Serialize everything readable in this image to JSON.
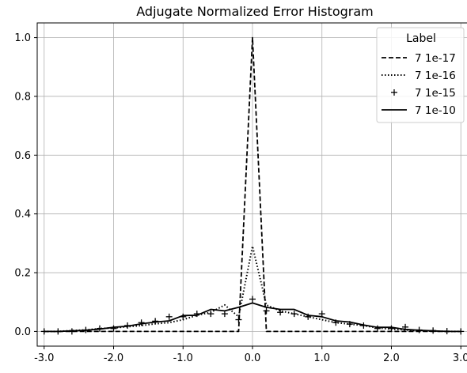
{
  "chart_data": {
    "type": "line",
    "title": "Adjugate Normalized Error Histogram",
    "xlabel": "",
    "ylabel": "",
    "xlim": [
      -3.1,
      3.1
    ],
    "ylim": [
      -0.05,
      1.05
    ],
    "xticks": [
      -3.0,
      -2.0,
      -1.0,
      0.0,
      1.0,
      2.0,
      3.0
    ],
    "xtick_labels": [
      "-3.0",
      "-2.0",
      "-1.0",
      "0.0",
      "1.0",
      "2.0",
      "3.0"
    ],
    "yticks": [
      0.0,
      0.2,
      0.4,
      0.6,
      0.8,
      1.0
    ],
    "ytick_labels": [
      "0.0",
      "0.2",
      "0.4",
      "0.6",
      "0.8",
      "1.0"
    ],
    "grid": true,
    "legend": {
      "title": "Label",
      "position": "top-right"
    },
    "x": [
      -3.0,
      -2.8,
      -2.6,
      -2.4,
      -2.2,
      -2.0,
      -1.8,
      -1.6,
      -1.4,
      -1.2,
      -1.0,
      -0.8,
      -0.6,
      -0.4,
      -0.2,
      0.0,
      0.2,
      0.4,
      0.6,
      0.8,
      1.0,
      1.2,
      1.4,
      1.6,
      1.8,
      2.0,
      2.2,
      2.4,
      2.6,
      2.8,
      3.0
    ],
    "series": [
      {
        "name": "7 1e-17",
        "style": "dashed",
        "values": [
          0,
          0,
          0,
          0,
          0,
          0,
          0,
          0,
          0,
          0,
          0,
          0,
          0,
          0,
          0,
          1.0,
          0,
          0,
          0,
          0,
          0,
          0,
          0,
          0,
          0,
          0,
          0,
          0,
          0,
          0,
          0
        ]
      },
      {
        "name": "7 1e-16",
        "style": "dotted",
        "values": [
          0.0,
          0.0,
          0.003,
          0.005,
          0.01,
          0.012,
          0.016,
          0.02,
          0.026,
          0.03,
          0.04,
          0.055,
          0.065,
          0.09,
          0.05,
          0.29,
          0.09,
          0.07,
          0.06,
          0.05,
          0.04,
          0.03,
          0.025,
          0.02,
          0.012,
          0.008,
          0.005,
          0.002,
          0.001,
          0.0,
          0.0
        ]
      },
      {
        "name": "7 1e-15",
        "style": "plus",
        "values": [
          0.0,
          0.0,
          0.0,
          0.005,
          0.01,
          0.01,
          0.02,
          0.03,
          0.035,
          0.05,
          0.05,
          0.06,
          0.06,
          0.06,
          0.04,
          0.11,
          0.07,
          0.065,
          0.06,
          0.05,
          0.06,
          0.03,
          0.025,
          0.02,
          0.01,
          0.01,
          0.015,
          0.005,
          0.003,
          0.001,
          0.0
        ]
      },
      {
        "name": "7 1e-10",
        "style": "solid",
        "values": [
          0.0,
          0.0,
          0.002,
          0.004,
          0.008,
          0.014,
          0.018,
          0.026,
          0.032,
          0.036,
          0.054,
          0.055,
          0.075,
          0.07,
          0.082,
          0.097,
          0.082,
          0.075,
          0.075,
          0.055,
          0.05,
          0.036,
          0.032,
          0.022,
          0.014,
          0.014,
          0.007,
          0.004,
          0.002,
          0.0,
          0.0
        ]
      }
    ]
  }
}
